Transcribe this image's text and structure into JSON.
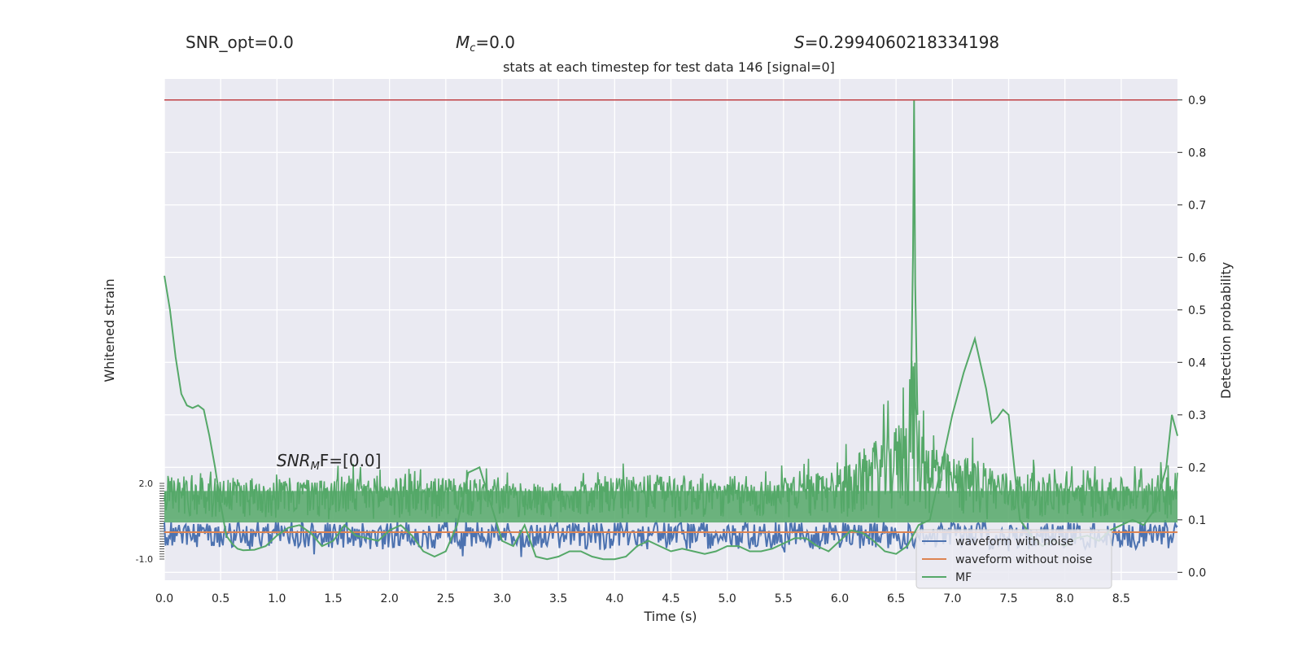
{
  "header": {
    "snr_opt": "SNR_opt=0.0",
    "mc_symbol": "M",
    "mc_sub": "c",
    "mc_value": "=0.0",
    "s_symbol": "S",
    "s_value": "=0.2994060218334198"
  },
  "annotation": {
    "snr_mf_a": "SNR",
    "snr_mf_sub": "M",
    "snr_mf_b": "F=[0.0]"
  },
  "chart_data": {
    "type": "line",
    "title": "stats at each timestep for test data 146 [signal=0]",
    "xlabel": "Time (s)",
    "ylabel_left": "Whitened strain",
    "ylabel_right": "Detection probability",
    "xlim": [
      0.0,
      9.0
    ],
    "ylim_right": [
      -0.015,
      0.94
    ],
    "ylim_left": [
      -1.0,
      2.0
    ],
    "x_ticks": [
      "0.0",
      "0.5",
      "1.0",
      "1.5",
      "2.0",
      "2.5",
      "3.0",
      "3.5",
      "4.0",
      "4.5",
      "5.0",
      "5.5",
      "6.0",
      "6.5",
      "7.0",
      "7.5",
      "8.0",
      "8.5"
    ],
    "y_right_ticks": [
      "0.0",
      "0.1",
      "0.2",
      "0.3",
      "0.4",
      "0.5",
      "0.6",
      "0.7",
      "0.8",
      "0.9"
    ],
    "y_left_ticks": [
      "-1.0",
      "2.0"
    ],
    "threshold": 0.9,
    "grid": true,
    "legend_position": "lower-right",
    "series": [
      {
        "name": "waveform with noise",
        "color": "#4c72b0"
      },
      {
        "name": "waveform without noise",
        "color": "#dd8452"
      },
      {
        "name": "MF",
        "color": "#55a868"
      }
    ],
    "mf_curve": {
      "x": [
        0.0,
        0.05,
        0.1,
        0.15,
        0.2,
        0.25,
        0.3,
        0.35,
        0.4,
        0.45,
        0.5,
        0.55,
        0.6,
        0.65,
        0.7,
        0.8,
        0.9,
        1.0,
        1.1,
        1.2,
        1.3,
        1.4,
        1.5,
        1.6,
        1.7,
        1.8,
        1.9,
        2.0,
        2.1,
        2.2,
        2.3,
        2.4,
        2.5,
        2.6,
        2.7,
        2.8,
        2.9,
        3.0,
        3.1,
        3.2,
        3.3,
        3.4,
        3.5,
        3.6,
        3.7,
        3.8,
        3.9,
        4.0,
        4.1,
        4.2,
        4.3,
        4.4,
        4.5,
        4.6,
        4.7,
        4.8,
        4.9,
        5.0,
        5.1,
        5.2,
        5.3,
        5.4,
        5.5,
        5.6,
        5.7,
        5.8,
        5.9,
        6.0,
        6.1,
        6.2,
        6.3,
        6.4,
        6.5,
        6.6,
        6.7,
        6.8,
        6.9,
        7.0,
        7.1,
        7.2,
        7.3,
        7.35,
        7.4,
        7.45,
        7.5,
        7.6,
        7.7,
        7.8,
        7.9,
        8.0,
        8.1,
        8.2,
        8.3,
        8.4,
        8.5,
        8.6,
        8.7,
        8.8,
        8.9,
        8.95,
        9.0
      ],
      "y": [
        0.565,
        0.5,
        0.41,
        0.34,
        0.318,
        0.313,
        0.318,
        0.31,
        0.26,
        0.2,
        0.13,
        0.07,
        0.055,
        0.045,
        0.042,
        0.043,
        0.05,
        0.07,
        0.085,
        0.09,
        0.075,
        0.05,
        0.06,
        0.09,
        0.07,
        0.065,
        0.06,
        0.08,
        0.09,
        0.07,
        0.04,
        0.03,
        0.04,
        0.09,
        0.19,
        0.2,
        0.13,
        0.06,
        0.05,
        0.09,
        0.03,
        0.025,
        0.03,
        0.04,
        0.04,
        0.03,
        0.025,
        0.025,
        0.03,
        0.05,
        0.06,
        0.05,
        0.04,
        0.045,
        0.04,
        0.035,
        0.04,
        0.05,
        0.05,
        0.04,
        0.04,
        0.045,
        0.055,
        0.065,
        0.065,
        0.05,
        0.04,
        0.06,
        0.08,
        0.075,
        0.06,
        0.04,
        0.035,
        0.05,
        0.09,
        0.1,
        0.2,
        0.3,
        0.38,
        0.445,
        0.35,
        0.285,
        0.295,
        0.31,
        0.3,
        0.1,
        0.07,
        0.05,
        0.06,
        0.05,
        0.065,
        0.07,
        0.06,
        0.08,
        0.09,
        0.1,
        0.09,
        0.12,
        0.2,
        0.3,
        0.26
      ]
    },
    "mf_noise_envelope": {
      "x": [
        0.0,
        0.5,
        1.0,
        1.5,
        2.0,
        2.5,
        3.0,
        3.5,
        4.0,
        4.5,
        5.0,
        5.5,
        6.0,
        6.3,
        6.5,
        6.6,
        6.65,
        6.7,
        6.8,
        7.0,
        7.2,
        7.5,
        8.0,
        8.5,
        9.0
      ],
      "y": [
        0.18,
        0.18,
        0.18,
        0.18,
        0.18,
        0.18,
        0.17,
        0.17,
        0.18,
        0.19,
        0.17,
        0.18,
        0.2,
        0.25,
        0.28,
        0.32,
        0.45,
        0.3,
        0.25,
        0.22,
        0.22,
        0.19,
        0.18,
        0.18,
        0.19
      ]
    },
    "mf_spike": {
      "x": 6.66,
      "y": 0.9
    }
  },
  "legend": {
    "items": [
      {
        "label": "waveform with noise",
        "color": "#4c72b0"
      },
      {
        "label": "waveform without noise",
        "color": "#dd8452"
      },
      {
        "label": "MF",
        "color": "#55a868"
      }
    ]
  },
  "colors": {
    "plot_bg": "#eaeaf2",
    "grid": "#ffffff",
    "threshold": "#c44e52"
  }
}
